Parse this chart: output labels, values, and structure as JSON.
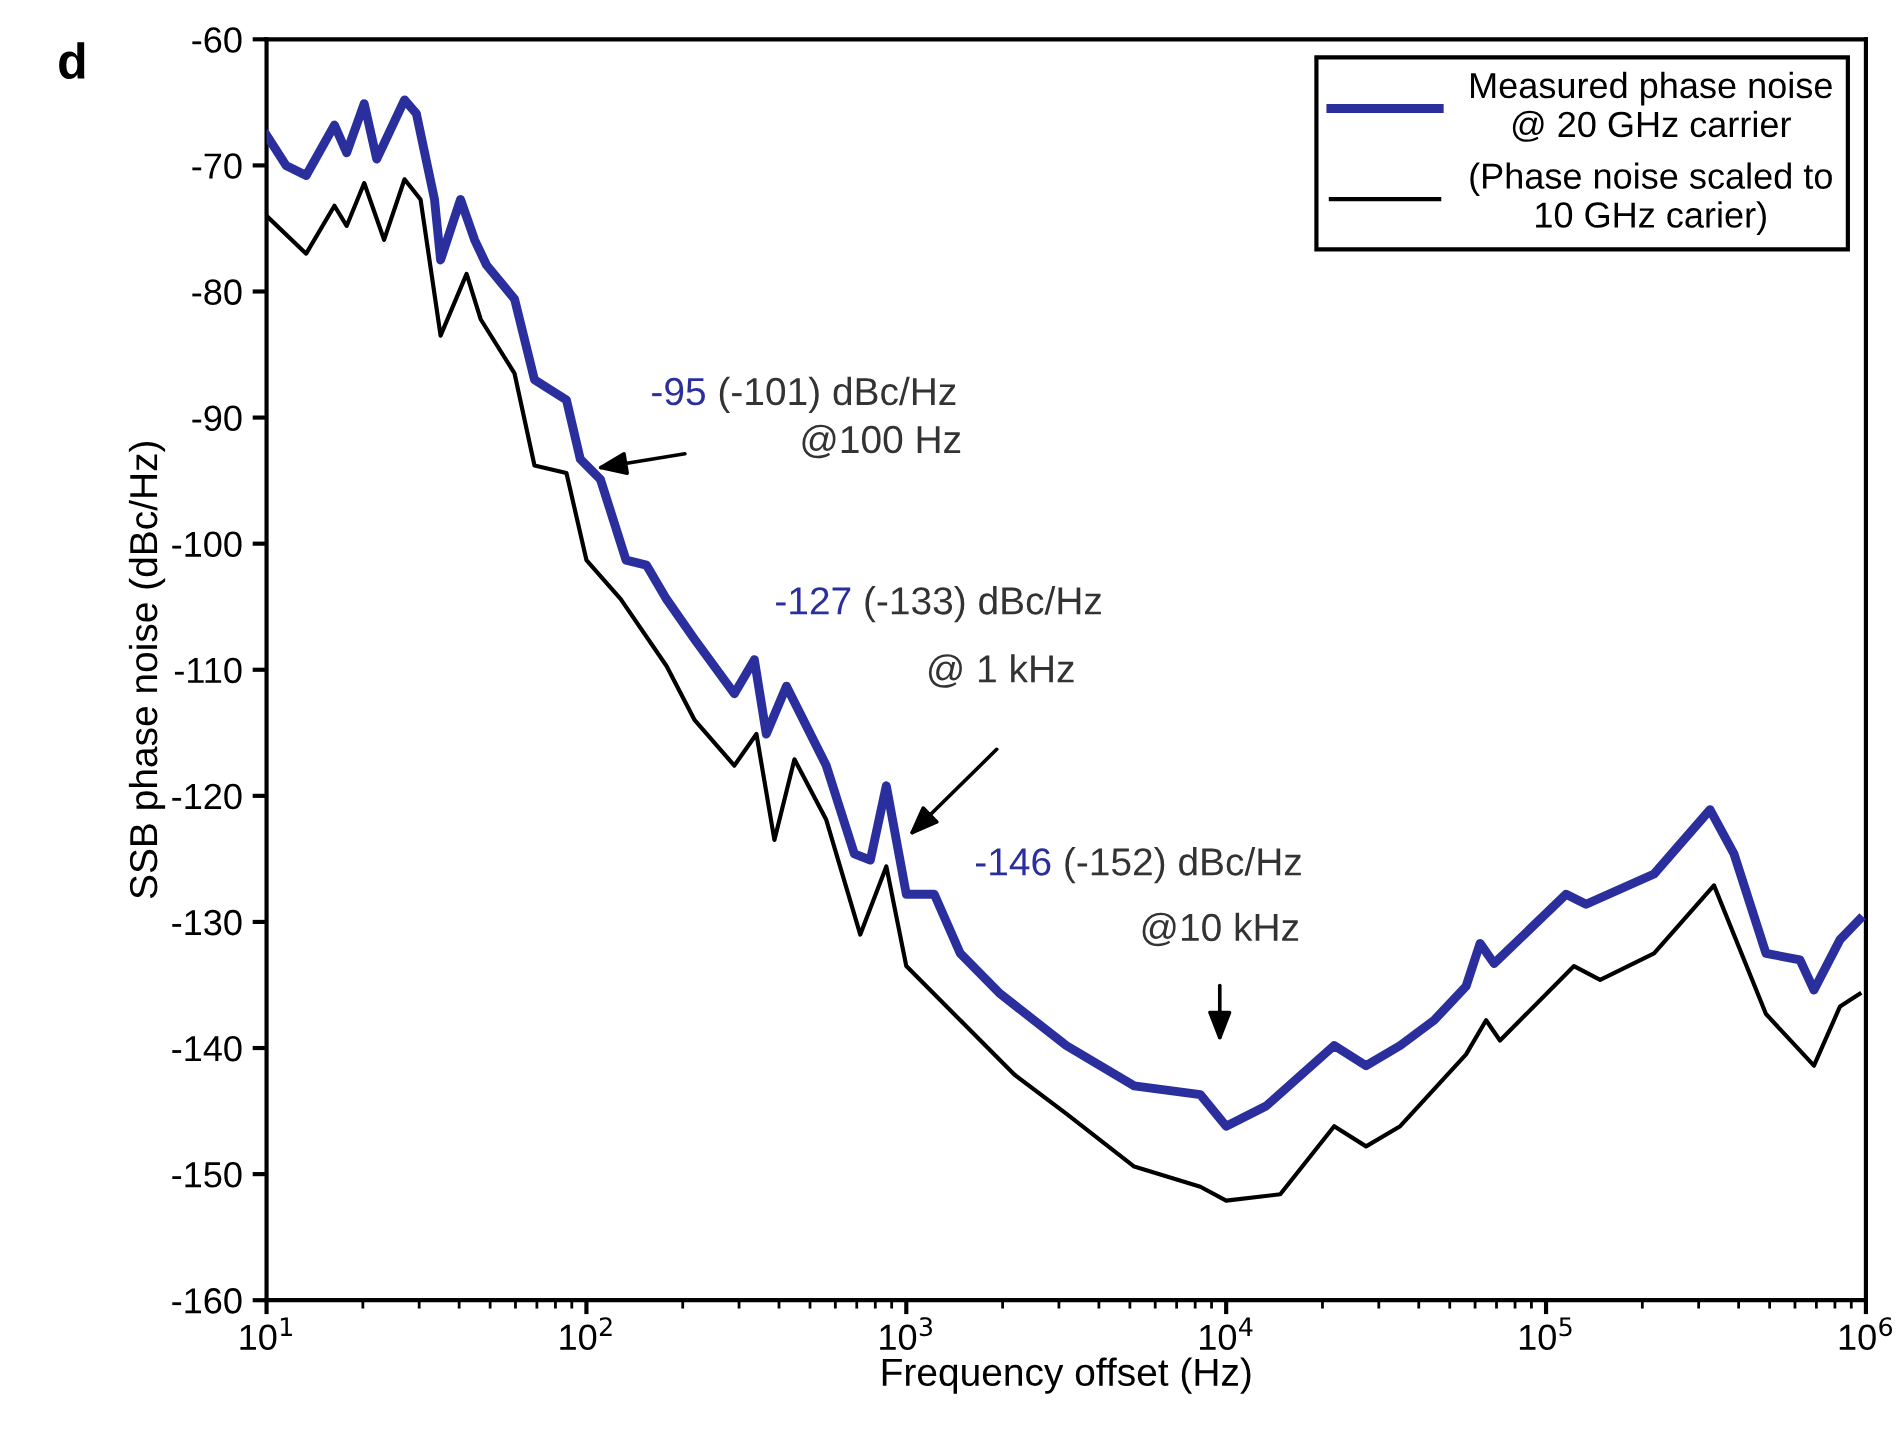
{
  "chart_data": {
    "type": "line",
    "xlabel": "Frequency offset (Hz)",
    "ylabel": "SSB phase noise (dBc/Hz)",
    "log": "x",
    "xlim": [
      10,
      1000000
    ],
    "ylim": [
      -160,
      -60
    ],
    "xticks": [
      {
        "value": 10,
        "label": "10$^{1}$"
      },
      {
        "value": 100,
        "label": "10$^{2}$"
      },
      {
        "value": 1000,
        "label": "10$^{3}$"
      },
      {
        "value": 10000,
        "label": "10$^{4}$"
      },
      {
        "value": 100000,
        "label": "10$^{5}$"
      },
      {
        "value": 1000000,
        "label": "10$^{6}$"
      }
    ],
    "yticks": [
      -160,
      -150,
      -140,
      -130,
      -120,
      -110,
      -100,
      -90,
      -80,
      -70,
      -60
    ],
    "grid": false,
    "legend": "top right",
    "marker": "none",
    "line_style": "solid",
    "series": [
      {
        "name": "Measured phase noise\n@ 20 GHz carrier",
        "color": "#2b2f9e",
        "x": [
          10,
          11.5,
          13.3,
          16.3,
          17.8,
          20.2,
          22.1,
          27,
          29.4,
          33.5,
          35,
          40.4,
          44.7,
          48.7,
          59.6,
          68.8,
          86.6,
          95.7,
          110.6,
          133,
          154,
          178,
          218,
          290,
          335,
          365,
          422,
          562,
          688,
          772,
          866,
          1000,
          1223,
          1475,
          1966,
          3162,
          5158,
          8303,
          10000,
          13335,
          21760,
          27380,
          35000,
          44670,
          56230,
          62200,
          68800,
          115500,
          133400,
          217600,
          325500,
          386800,
          487000,
          622000,
          688000,
          830000,
          955000
        ],
        "values": [
          -67.6,
          -70.0,
          -70.8,
          -66.8,
          -69.0,
          -65.1,
          -69.5,
          -64.8,
          -65.9,
          -72.7,
          -77.5,
          -72.7,
          -75.9,
          -77.9,
          -80.6,
          -87.0,
          -88.6,
          -93.3,
          -94.9,
          -101.3,
          -101.7,
          -104.4,
          -107.6,
          -111.9,
          -109.2,
          -115.1,
          -111.3,
          -117.6,
          -124.6,
          -125.1,
          -119.2,
          -127.8,
          -127.8,
          -132.5,
          -135.7,
          -139.8,
          -143.0,
          -143.7,
          -146.2,
          -144.6,
          -139.8,
          -141.4,
          -139.8,
          -137.8,
          -135.1,
          -131.7,
          -133.3,
          -127.8,
          -128.6,
          -126.2,
          -121.1,
          -124.6,
          -132.5,
          -133.0,
          -135.4,
          -131.4,
          -129.8
        ]
      },
      {
        "name": "(Phase noise scaled to\n10 GHz carier)",
        "color": "#000000",
        "x": [
          10,
          13.3,
          16.3,
          17.8,
          20.2,
          23.3,
          27,
          30.3,
          35,
          42.2,
          46.7,
          59.6,
          68.8,
          86.6,
          100,
          128,
          178,
          218,
          290,
          340,
          387,
          447,
          562,
          718,
          866,
          1000,
          1475,
          2176,
          3162,
          5158,
          8303,
          10000,
          14760,
          21760,
          27380,
          35000,
          56230,
          64940,
          71780,
          122300,
          147600,
          217600,
          335000,
          487000,
          688000,
          830000,
          955000
        ],
        "values": [
          -74.0,
          -77.0,
          -73.2,
          -74.8,
          -71.4,
          -75.9,
          -71.1,
          -72.7,
          -83.5,
          -78.6,
          -82.2,
          -86.5,
          -93.8,
          -94.4,
          -101.3,
          -104.4,
          -109.7,
          -114.0,
          -117.6,
          -115.1,
          -123.5,
          -117.1,
          -121.9,
          -131.0,
          -125.6,
          -133.5,
          -137.8,
          -142.1,
          -145.2,
          -149.4,
          -151.0,
          -152.1,
          -151.6,
          -146.2,
          -147.8,
          -146.2,
          -140.5,
          -137.8,
          -139.4,
          -133.5,
          -134.6,
          -132.5,
          -127.1,
          -137.3,
          -141.4,
          -136.7,
          -135.7
        ]
      }
    ],
    "annotations": [
      "d",
      {
        "text": "-95",
        "x": 103,
        "y": -94.1
      },
      "(-101) dBc/Hz",
      "@100 Hz",
      "-127",
      "(-133) dBc/Hz",
      "@ 1 kHz",
      "-146",
      "(-152) dBc/Hz",
      "@10 kHz"
    ]
  }
}
